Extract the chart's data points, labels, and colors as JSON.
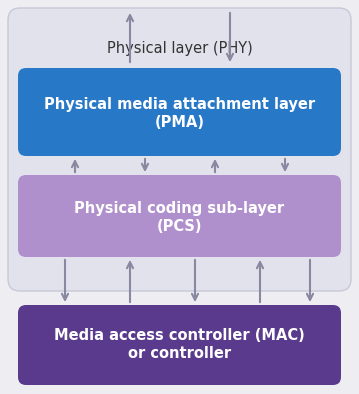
{
  "bg_color": "#ededf2",
  "outer_box_color": "#e2e2ec",
  "outer_box_edge": "#c8c8d8",
  "pma_color": "#2878c8",
  "pma_label1": "Physical media attachment layer",
  "pma_label2": "(PMA)",
  "pcs_color": "#b090cc",
  "pcs_label1": "Physical coding sub-layer",
  "pcs_label2": "(PCS)",
  "mac_color": "#5a3a8c",
  "mac_label1": "Media access controller (MAC)",
  "mac_label2": "or controller",
  "phy_label": "Physical layer (PHY)",
  "arrow_color": "#8888a0",
  "text_color_white": "#ffffff",
  "text_color_dark": "#333333",
  "font_size_box": 10.5,
  "font_size_phy": 10.5,
  "fig_width": 3.59,
  "fig_height": 3.94,
  "dpi": 100
}
